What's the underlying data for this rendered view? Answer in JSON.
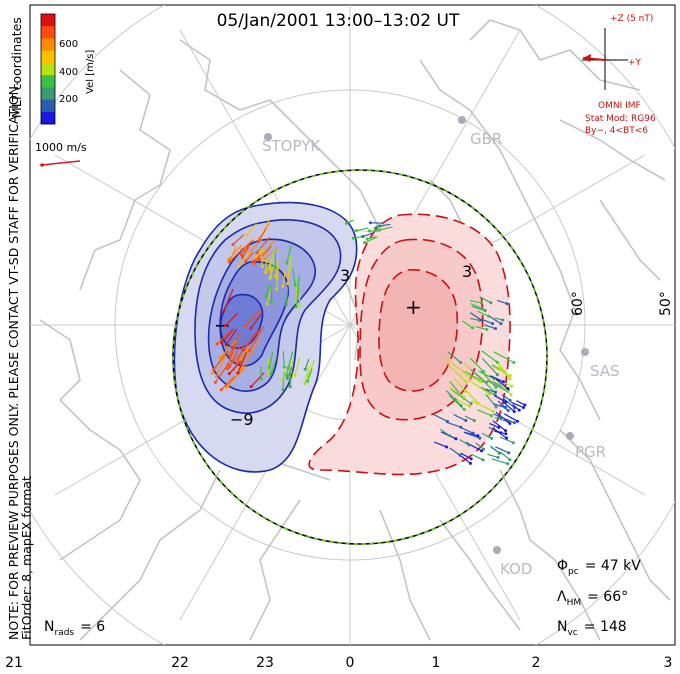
{
  "title": "05/Jan/2001 13:00–13:02 UT",
  "notice": "NOTE: FOR PREVIEW PURPOSES ONLY. PLEASE CONTACT VT-SD STAFF FOR VERIFICATION.",
  "fit_info": "FitOrder: 8, mapEX format",
  "coord_system": "MLT coordinates",
  "velocity_scale": {
    "label": "Vel [m/s]",
    "ticks": [
      "600",
      "400",
      "200"
    ],
    "colors": [
      "#e01010",
      "#ff4a10",
      "#ff8c00",
      "#ffc000",
      "#b8e010",
      "#3cc040",
      "#3a9a70",
      "#2a5fb0",
      "#1818e0"
    ]
  },
  "reference_vector": {
    "label": "1000 m/s"
  },
  "imf": {
    "z_label": "+Z (5 nT)",
    "y_label": "+Y",
    "source": "OMNI IMF",
    "model": "Stat Mod: RG96",
    "condition": "By−, 4<BT<6"
  },
  "stations": [
    "STOPYK",
    "GBR",
    "SAS",
    "PGR",
    "KOD"
  ],
  "latitude_labels": [
    "60°",
    "50°"
  ],
  "contour_labels": {
    "negative": "−9",
    "positive": "3",
    "positive_2": "3",
    "min_marker": "−",
    "max_marker": "+"
  },
  "stats": {
    "phi_pc_symbol": "Φ",
    "phi_pc_sub": "pc",
    "phi_pc_value": "= 47 kV",
    "lambda_hm_symbol": "Λ",
    "lambda_hm_sub": "HM",
    "lambda_hm_value": "= 66°",
    "n_vc_symbol": "N",
    "n_vc_sub": "vc",
    "n_vc_value": "= 148",
    "n_rads_symbol": "N",
    "n_rads_sub": "rads",
    "n_rads_value": "= 6"
  },
  "mlt_axis": [
    "21",
    "22",
    "23",
    "0",
    "1",
    "2",
    "3"
  ]
}
